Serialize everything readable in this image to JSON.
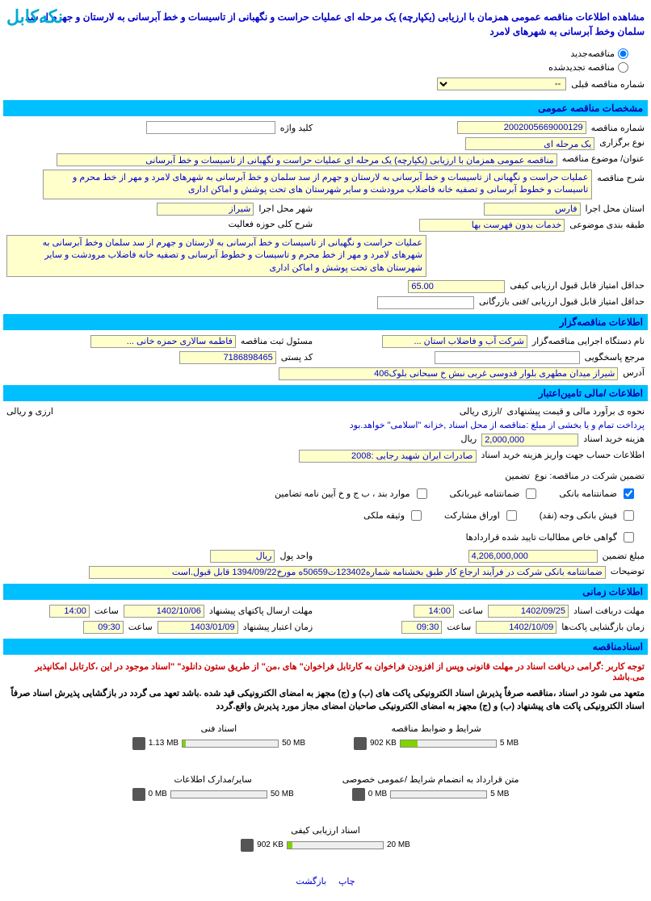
{
  "logo": "نکه‌کابل",
  "page_title": "مشاهده اطلاعات مناقصه عمومی همزمان با ارزیابی (یکپارچه) یک مرحله ای عملیات حراست و نگهبانی از تاسیسات و خط آبرسانی به لارستان و جهرم از سد سلمان وخط آبرسانی به شهرهای لامرد",
  "radio": {
    "new_tender": "مناقصه‌جدید",
    "renewed_tender": "مناقصه تجدیدشده",
    "prev_num_label": "شماره مناقصه قبلی",
    "prev_num_value": "--"
  },
  "sec_general": {
    "title": "مشخصات مناقصه عمومی",
    "tender_no_label": "شماره مناقصه",
    "tender_no": "2002005669000129",
    "keyword_label": "کلید واژه",
    "keyword": "",
    "hold_type_label": "نوع برگزاری",
    "hold_type": "یک مرحله ای",
    "subject_label": "عنوان/ موضوع مناقصه",
    "subject": "مناقصه عمومی همزمان با ارزیابی (یکپارچه) یک مرحله ای عملیات حراست و نگهبانی از تاسیسات و خط آبرسانی",
    "desc_label": "شرح مناقصه",
    "desc": "عملیات حراست و نگهبانی از تاسیسات و خط آبرسانی به لارستان و جهرم از سد سلمان و خط آبرسانی به شهرهای لامرد و مهر از خط محرم و تاسیسات و خطوط آبرسانی و تصفیه خانه فاضلاب مرودشت و سایر شهرستان های تحت پوشش و اماکن اداری",
    "province_label": "استان محل اجرا",
    "province": "فارس",
    "city_label": "شهر محل اجرا",
    "city": "شیراز",
    "category_label": "طبقه بندی موضوعی",
    "category": "خدمات بدون فهرست بها",
    "activity_label": "شرح کلی حوزه فعالیت",
    "activity": "عملیات حراست و نگهبانی از تاسیسات و خط آبرسانی به لارستان و جهرم از سد سلمان وخط آبرسانی به شهرهای لامرد و مهر از خط محرم و تاسیسات و خطوط آبرسانی و تصفیه خانه فاضلاب مرودشت و سایر شهرستان های تحت پوشش و اماکن اداری",
    "min_quality_label": "حداقل امتیاز قابل قبول ارزیابی کیفی",
    "min_quality": "65.00",
    "min_tech_label": "حداقل امتیاز قابل قبول ارزیابی /فنی بازرگانی",
    "min_tech": ""
  },
  "sec_org": {
    "title": "اطلاعات مناقصه‌گزار",
    "exec_label": "نام دستگاه اجرایی مناقصه‌گزار",
    "exec": "شرکت آب و فاضلاب استان ...",
    "reg_label": "مسئول ثبت مناقصه",
    "reg": "فاطمه سالاری حمزه خانی ...",
    "ref_label": "مرجع پاسخگویی",
    "ref": "",
    "postal_label": "کد پستی",
    "postal": "7186898465",
    "address_label": "آدرس",
    "address": "شیراز میدان مطهری بلوار قدوسی غربی نبش خ سبحانی بلوک406"
  },
  "sec_fin": {
    "title": "اطلاعات /مالی تامین‌اعتبار",
    "method_label": "نحوه ی برآورد مالی و قیمت پیشنهادی",
    "method": "/ارزی ریالی",
    "currency": "ارزی و ریالی",
    "payment_note": "پرداخت تمام و یا بخشی از مبلغ :مناقصه از محل اسناد ,خزانه \"اسلامی\" خواهد.بود",
    "doc_price_label": "هزینه خرید اسناد",
    "doc_price": "2,000,000",
    "doc_price_unit": "ریال",
    "account_label": "اطلاعات حساب جهت واریز هزینه خرید اسناد",
    "account": "صادرات ایران شهید رجایی :2008",
    "guarantee_label": "تضمین شرکت در مناقصه: نوع",
    "guarantee_type": "تضمین",
    "chk1": "ضمانتنامه بانکی",
    "chk2": "ضمانتنامه غیربانکی",
    "chk3": "موارد بند ، ب ج و خ آیین نامه تضامین",
    "chk4": "فیش بانکی وجه (نقد)",
    "chk5": "اوراق مشارکت",
    "chk6": "وثیقه ملکی",
    "chk7": "گواهی خاص مطالبات تایید شده قراردادها",
    "g_amount_label": "مبلغ تضمین",
    "g_amount": "4,206,000,000",
    "g_unit_label": "واحد پول",
    "g_unit": "ریال",
    "remarks_label": "توضیحات",
    "remarks": "ضمانتنامه بانکی شرکت در فرآیند ارجاع کار طبق بخشنامه شماره123402ت50659ه مورخ1394/09/22 قابل قبول.است"
  },
  "sec_time": {
    "title": "اطلاعات زمانی",
    "recv_deadline_label": "مهلت دریافت اسناد",
    "recv_deadline": "1402/09/25",
    "recv_time_label": "ساعت",
    "recv_time": "14:00",
    "send_deadline_label": "مهلت ارسال پاکتهای پیشنهاد",
    "send_deadline": "1402/10/06",
    "send_time_label": "ساعت",
    "send_time": "14:00",
    "open_label": "زمان بازگشایی پاکت‌ها",
    "open_date": "1402/10/09",
    "open_time_label": "ساعت",
    "open_time": "09:30",
    "propose_label": "زمان اعتبار پیشنهاد",
    "propose_date": "1403/01/09",
    "propose_time_label": "ساعت",
    "propose_time": "09:30"
  },
  "sec_docs": {
    "title": "اسنادمناقصه",
    "red_notice": "توجه کاربر :گرامی دریافت اسناد در مهلت قانونی وپس از افزودن فراخوان به کارتابل فراخوان\" های ،من\" از طریق ستون دانلود\" \"اسناد موجود در این ،کارتابل امکانپذیر می.باشد",
    "black_notice": "متعهد می شود در اسناد ،مناقصه صرفاً پذیرش اسناد الکترونیکی پاکت های (ب) و (ج) مجهز به امضای الکترونیکی قید شده .باشد تعهد می گردد در بازگشایی پذیرش اسناد صرفاً اسناد الکترونیکی پاکت های پیشنهاد (ب) و (ج) مجهز به امضای الکترونیکی صاحبان امضای مجاز مورد پذیرش واقع.گردد"
  },
  "uploads": {
    "u1": {
      "label": "شرایط و ضوابط مناقصه",
      "max": "5 MB",
      "used": "902 KB",
      "pct": 18
    },
    "u2": {
      "label": "اسناد فنی",
      "max": "50 MB",
      "used": "1.13 MB",
      "pct": 3
    },
    "u3": {
      "label": "متن قرارداد به انضمام شرایط /عمومی خصوصی",
      "max": "5 MB",
      "used": "0 MB",
      "pct": 0
    },
    "u4": {
      "label": "سایر/مدارک اطلاعات",
      "max": "50 MB",
      "used": "0 MB",
      "pct": 0
    },
    "u5": {
      "label": "اسناد ارزیابی کیفی",
      "max": "20 MB",
      "used": "902 KB",
      "pct": 5
    }
  },
  "footer": {
    "print": "چاپ",
    "back": "بازگشت"
  }
}
